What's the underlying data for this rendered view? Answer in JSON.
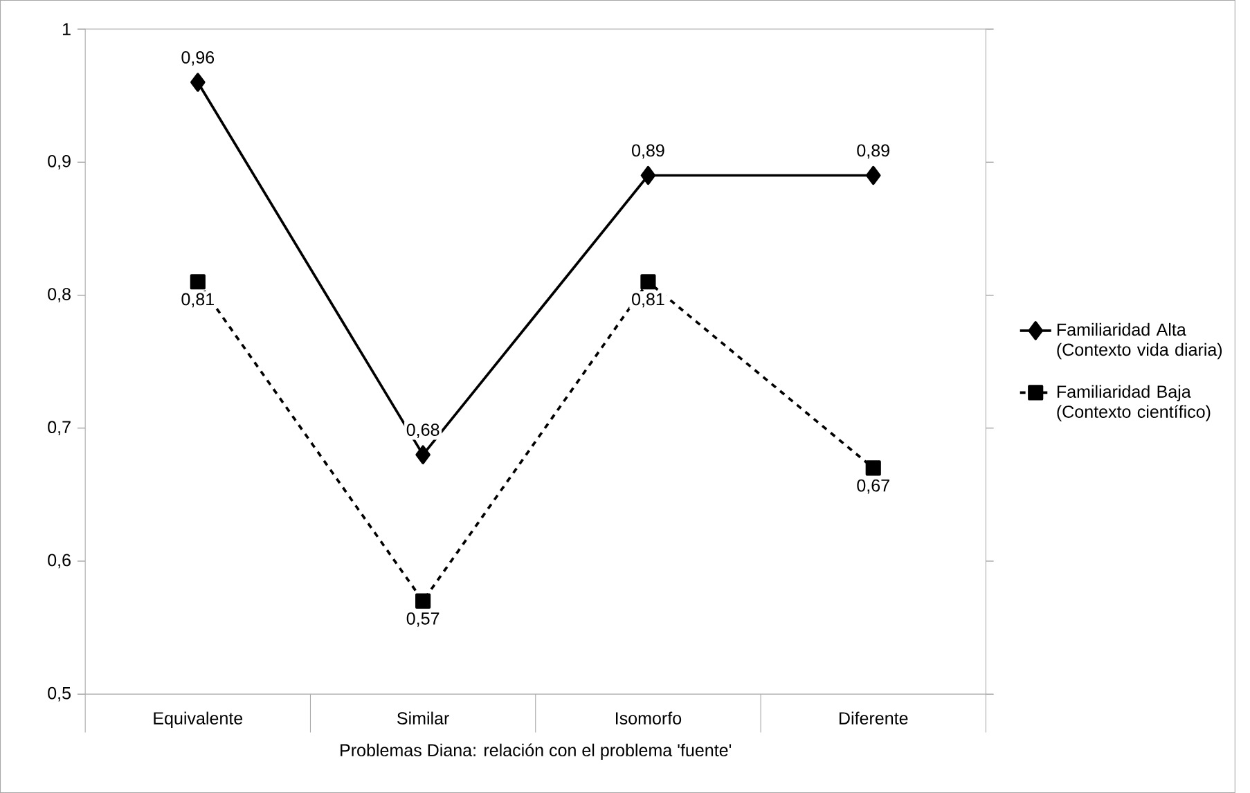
{
  "chart_data": {
    "type": "line",
    "xlabel": "Problemas Diana: relación con el problema 'fuente'",
    "categories": [
      "Equivalente",
      "Similar",
      "Isomorfo",
      "Diferente"
    ],
    "series": [
      {
        "name": "Familiaridad Alta (Contexto vida diaria)",
        "color": "#000000",
        "marker": "diamond",
        "line_style": "solid",
        "values": [
          0.96,
          0.68,
          0.89,
          0.89
        ],
        "value_labels": [
          "0,96",
          "0,68",
          "0,89",
          "0,89"
        ]
      },
      {
        "name": "Familiaridad Baja (Contexto científico)",
        "color": "#000000",
        "marker": "square",
        "line_style": "dashed",
        "values": [
          0.81,
          0.57,
          0.81,
          0.67
        ],
        "value_labels": [
          "0,81",
          "0,57",
          "0,81",
          "0,67"
        ]
      }
    ],
    "ylim": [
      0.5,
      1
    ],
    "yticks": [
      {
        "value": 0.5,
        "label": "0,5"
      },
      {
        "value": 0.6,
        "label": "0,6"
      },
      {
        "value": 0.7,
        "label": "0,7"
      },
      {
        "value": 0.8,
        "label": "0,8"
      },
      {
        "value": 0.9,
        "label": "0,9"
      },
      {
        "value": 1,
        "label": "1"
      }
    ],
    "grid": false,
    "legend": "right"
  }
}
